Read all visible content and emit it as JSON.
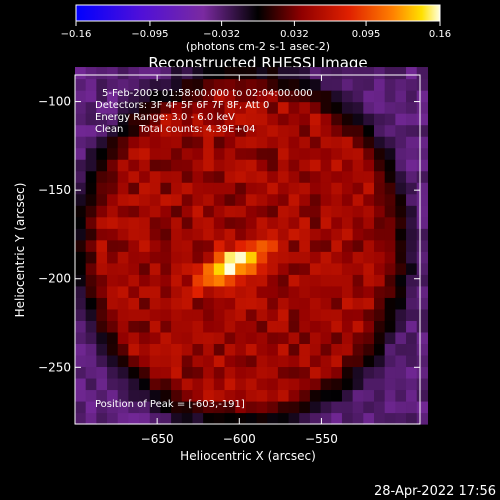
{
  "chart_data": {
    "type": "heatmap",
    "title": "Reconstructed RHESSI Image",
    "colorbar": {
      "min": -0.16,
      "max": 0.16,
      "tick_labels": [
        "-0.16",
        "-0.095",
        "-0.032",
        "0.032",
        "0.095",
        "0.16"
      ],
      "tick_values": [
        -0.16,
        -0.095,
        -0.032,
        0.032,
        0.095,
        0.16
      ],
      "unit_label": "(photons cm-2 s-1 asec-2)"
    },
    "xlabel": "Heliocentric X (arcsec)",
    "ylabel": "Heliocentric Y (arcsec)",
    "xlim": [
      -700,
      -490
    ],
    "ylim": [
      -282,
      -85
    ],
    "x_ticks": [
      -650,
      -600,
      -550
    ],
    "x_tick_labels": [
      "−650",
      "−600",
      "−550"
    ],
    "y_ticks": [
      -100,
      -150,
      -200,
      -250
    ],
    "y_tick_labels": [
      "−100",
      "−150",
      "−200",
      "−250"
    ],
    "annotations": [
      "5-Feb-2003 01:58:00.000 to 02:04:00.000",
      "Detectors: 3F 4F 5F 6F 7F 8F, Att 0",
      "Energy Range: 3.0 - 6.0 keV",
      "Clean     Total counts: 4.39E+04"
    ],
    "peak_label": "Position of Peak = [-603,-191]",
    "peak": [
      -603,
      -191
    ],
    "image_model": {
      "disk_center": [
        -598,
        -182
      ],
      "disk_radius": 88,
      "peak_position": [
        -603,
        -191
      ],
      "peak_value": 0.16,
      "background_value": -0.035
    }
  },
  "footer": {
    "timestamp": "28-Apr-2022 17:56"
  }
}
